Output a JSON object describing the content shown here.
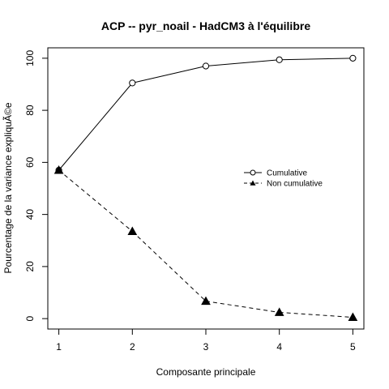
{
  "chart_data": {
    "type": "line",
    "title": "ACP -- pyr_noail - HadCM3 à l'équilibre",
    "xlabel": "Composante principale",
    "ylabel": "Pourcentage de la variance expliquÃ©e",
    "x": [
      1,
      2,
      3,
      4,
      5
    ],
    "x_ticks": [
      "1",
      "2",
      "3",
      "4",
      "5"
    ],
    "y_ticks": [
      "0",
      "20",
      "40",
      "60",
      "80",
      "100"
    ],
    "xlim": [
      0.85,
      5.15
    ],
    "ylim": [
      -4,
      104
    ],
    "grid": false,
    "legend_position": "right",
    "series": [
      {
        "name": "Cumulative",
        "values": [
          57,
          90.5,
          97,
          99.4,
          100
        ],
        "line": "solid",
        "marker": "open-circle",
        "color": "#000000"
      },
      {
        "name": "Non cumulative",
        "values": [
          57,
          33.5,
          6.7,
          2.4,
          0.5
        ],
        "line": "dashed",
        "marker": "filled-triangle",
        "color": "#000000"
      }
    ]
  }
}
